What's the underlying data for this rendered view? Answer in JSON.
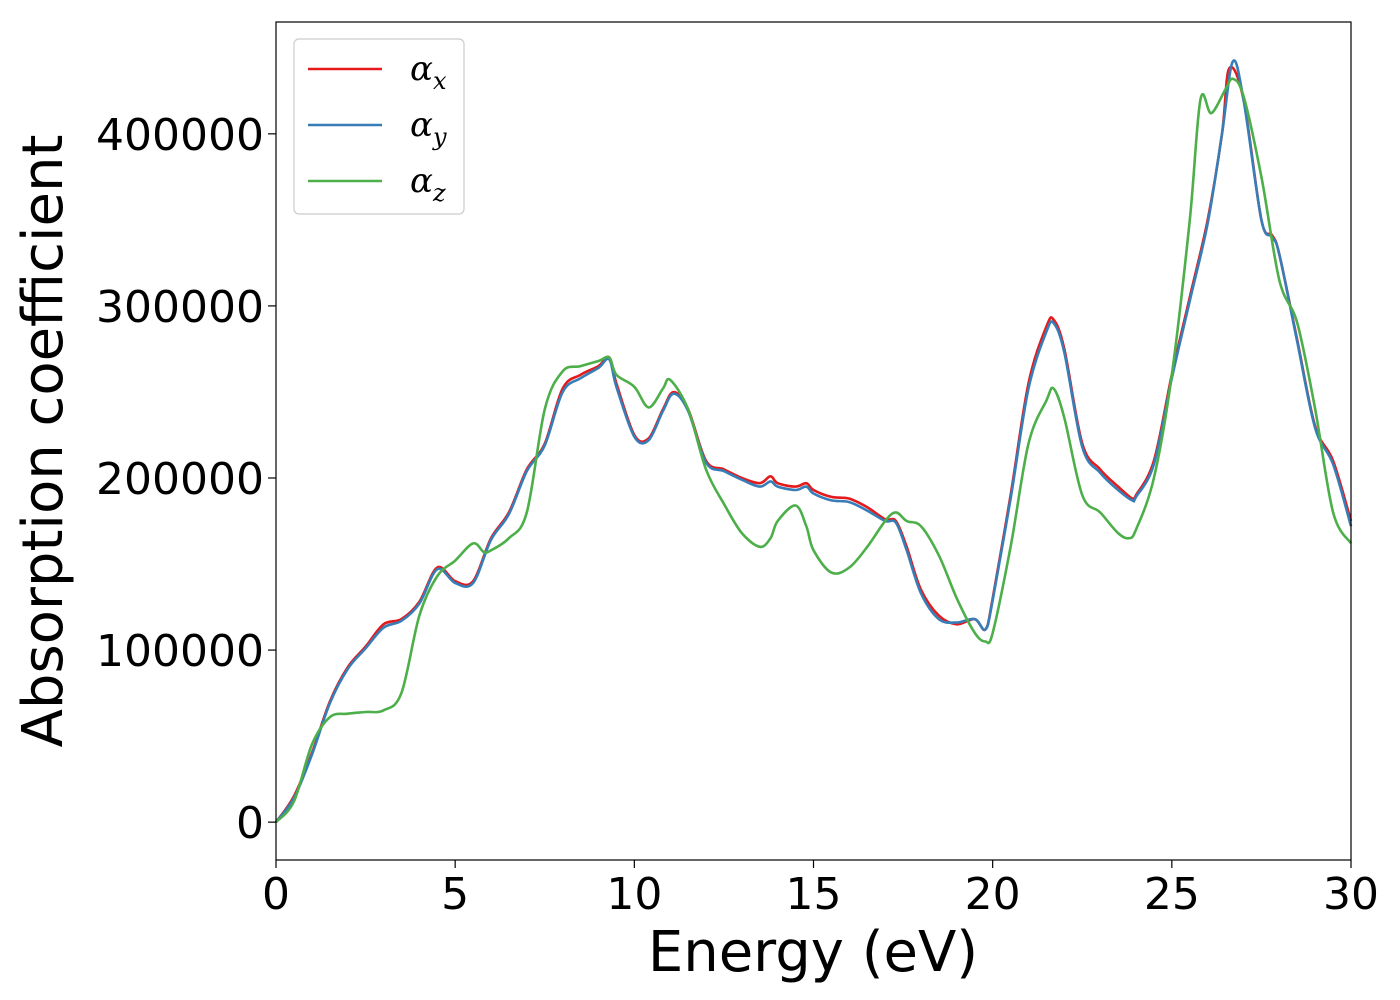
{
  "chart_data": {
    "type": "line",
    "xlabel": "Energy (eV)",
    "ylabel": "Absorption coefficient",
    "xlim": [
      0,
      30
    ],
    "ylim": [
      -22000,
      465000
    ],
    "xticks": [
      0,
      5,
      10,
      15,
      20,
      25,
      30
    ],
    "xtick_labels": [
      "0",
      "5",
      "10",
      "15",
      "20",
      "25",
      "30"
    ],
    "yticks": [
      0,
      100000,
      200000,
      300000,
      400000
    ],
    "ytick_labels": [
      "0",
      "100000",
      "200000",
      "300000",
      "400000"
    ],
    "grid": false,
    "legend_position": "upper-left",
    "series": [
      {
        "name": "αx",
        "base": "α",
        "sub": "x",
        "color": "#e41a1c",
        "x": [
          0,
          0.5,
          1,
          1.5,
          2,
          2.5,
          3,
          3.5,
          4,
          4.5,
          5,
          5.5,
          6,
          6.5,
          7,
          7.5,
          8,
          8.5,
          9,
          9.3,
          9.5,
          10,
          10.4,
          10.8,
          11.1,
          11.5,
          12,
          12.5,
          13,
          13.5,
          13.8,
          14,
          14.5,
          14.8,
          15,
          15.5,
          16,
          16.5,
          17,
          17.3,
          17.6,
          18,
          18.5,
          19,
          19.5,
          19.8,
          20,
          20.5,
          21,
          21.5,
          21.7,
          22,
          22.5,
          23,
          23.5,
          23.9,
          24,
          24.5,
          25,
          25.5,
          26,
          26.4,
          26.6,
          27,
          27.5,
          27.8,
          28,
          28.5,
          29,
          29.5,
          30
        ],
        "y": [
          0,
          15000,
          40000,
          70000,
          90000,
          102000,
          115000,
          118000,
          128000,
          148000,
          140000,
          140000,
          165000,
          180000,
          205000,
          220000,
          252000,
          260000,
          265000,
          270000,
          255000,
          225000,
          223000,
          240000,
          250000,
          240000,
          210000,
          205000,
          200000,
          197000,
          201000,
          197000,
          195000,
          197000,
          193000,
          189000,
          188000,
          183000,
          176000,
          175000,
          160000,
          135000,
          120000,
          115000,
          118000,
          112000,
          130000,
          190000,
          255000,
          288000,
          292000,
          275000,
          220000,
          205000,
          195000,
          188000,
          190000,
          210000,
          260000,
          305000,
          350000,
          400000,
          438000,
          420000,
          350000,
          341000,
          330000,
          280000,
          230000,
          210000,
          175000
        ]
      },
      {
        "name": "αy",
        "base": "α",
        "sub": "y",
        "color": "#377eb8",
        "x": [
          0,
          0.5,
          1,
          1.5,
          2,
          2.5,
          3,
          3.5,
          4,
          4.5,
          5,
          5.5,
          6,
          6.5,
          7,
          7.5,
          8,
          8.5,
          9,
          9.3,
          9.5,
          10,
          10.4,
          10.8,
          11.1,
          11.5,
          12,
          12.5,
          13,
          13.5,
          13.8,
          14,
          14.5,
          14.8,
          15,
          15.5,
          16,
          16.5,
          17,
          17.3,
          17.6,
          18,
          18.5,
          19,
          19.5,
          19.8,
          20,
          20.5,
          21,
          21.5,
          21.7,
          22,
          22.5,
          23,
          23.5,
          23.9,
          24,
          24.5,
          25,
          25.5,
          26,
          26.4,
          26.7,
          27,
          27.5,
          27.8,
          28,
          28.5,
          29,
          29.5,
          30
        ],
        "y": [
          0,
          14000,
          39000,
          69000,
          89000,
          101000,
          113000,
          117000,
          127000,
          147000,
          139000,
          139000,
          164000,
          179000,
          204000,
          219000,
          250000,
          258000,
          264000,
          269000,
          253000,
          224000,
          222000,
          239000,
          249000,
          239000,
          209000,
          204000,
          199000,
          195000,
          198000,
          195000,
          193000,
          195000,
          191000,
          187000,
          186000,
          181000,
          175000,
          174000,
          158000,
          133000,
          118000,
          116000,
          118000,
          112000,
          129000,
          188000,
          252000,
          285000,
          290000,
          273000,
          218000,
          203000,
          193000,
          187000,
          189000,
          208000,
          258000,
          303000,
          348000,
          400000,
          442000,
          420000,
          350000,
          340000,
          330000,
          279000,
          229000,
          208000,
          172000
        ]
      },
      {
        "name": "αz",
        "base": "α",
        "sub": "z",
        "color": "#4daf4a",
        "x": [
          0,
          0.5,
          1,
          1.5,
          2,
          2.5,
          3,
          3.5,
          4,
          4.5,
          5,
          5.5,
          5.8,
          6,
          6.5,
          7,
          7.5,
          8,
          8.5,
          9,
          9.3,
          9.5,
          10,
          10.4,
          10.8,
          11,
          11.5,
          12,
          12.5,
          13,
          13.5,
          13.8,
          14,
          14.5,
          14.8,
          15,
          15.5,
          16,
          16.5,
          17,
          17.3,
          17.6,
          18,
          18.5,
          19,
          19.5,
          19.8,
          20,
          20.5,
          21,
          21.5,
          21.7,
          22,
          22.5,
          23,
          23.5,
          23.8,
          24,
          24.5,
          25,
          25.5,
          25.8,
          26.1,
          26.5,
          26.7,
          27,
          27.5,
          28,
          28.5,
          29,
          29.5,
          30
        ],
        "y": [
          0,
          12000,
          45000,
          61000,
          63000,
          64000,
          65000,
          75000,
          120000,
          143000,
          152000,
          162000,
          157000,
          158000,
          165000,
          180000,
          240000,
          262000,
          265000,
          268000,
          270000,
          260000,
          253000,
          241000,
          252000,
          257000,
          240000,
          205000,
          185000,
          168000,
          160000,
          165000,
          175000,
          184000,
          172000,
          158000,
          145000,
          148000,
          160000,
          175000,
          180000,
          175000,
          172000,
          155000,
          130000,
          110000,
          105000,
          110000,
          160000,
          220000,
          245000,
          252000,
          235000,
          190000,
          180000,
          168000,
          165000,
          170000,
          200000,
          260000,
          350000,
          420000,
          412000,
          426000,
          432000,
          422000,
          375000,
          315000,
          290000,
          240000,
          180000,
          162000
        ]
      }
    ]
  }
}
